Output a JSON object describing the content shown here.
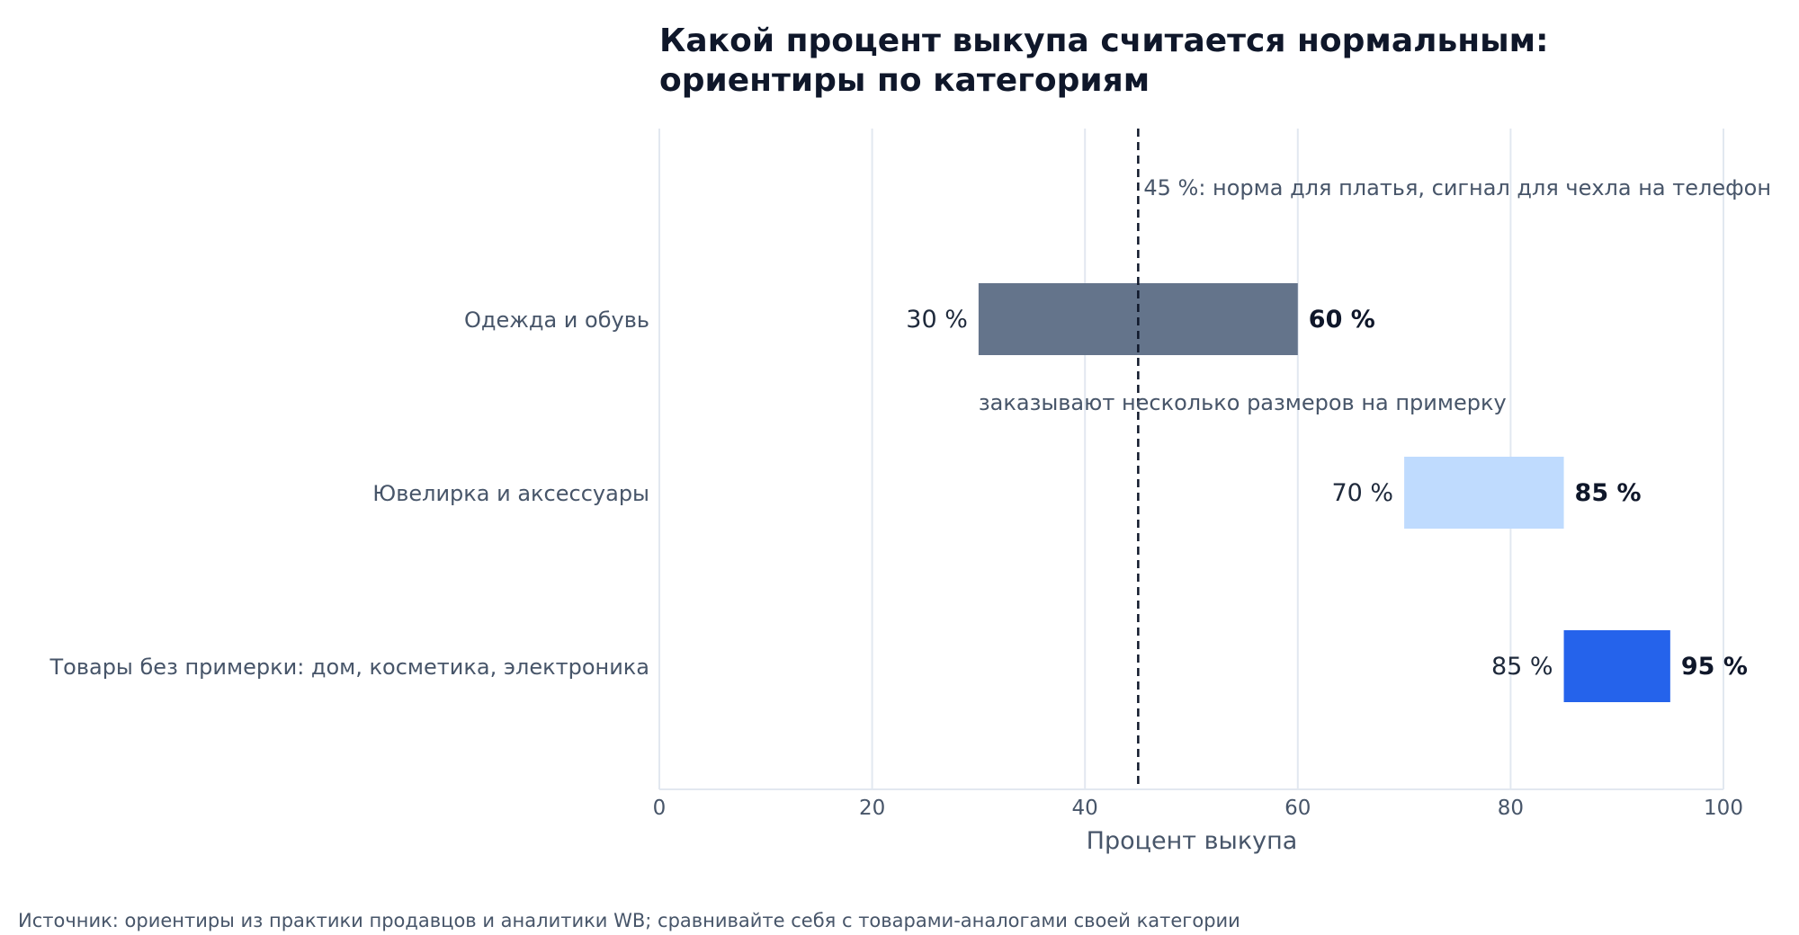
{
  "chart_data": {
    "type": "bar",
    "orientation": "horizontal",
    "subtype": "range",
    "title_lines": [
      "Какой процент выкупа считается нормальным:",
      "ориентиры по категориям"
    ],
    "xlabel": "Процент выкупа",
    "ylabel": "",
    "xlim": [
      0,
      100
    ],
    "xticks": [
      0,
      20,
      40,
      60,
      80,
      100
    ],
    "grid": "vertical",
    "legend": "none",
    "categories": [
      "Одежда и обувь",
      "Ювелирка и аксессуары",
      "Товары без примерки: дом, косметика, электроника"
    ],
    "ranges": [
      {
        "low": 30,
        "high": 60,
        "low_label": "30 %",
        "high_label": "60 %",
        "color": "#64748b"
      },
      {
        "low": 70,
        "high": 85,
        "low_label": "70 %",
        "high_label": "85 %",
        "color": "#bfdbfe"
      },
      {
        "low": 85,
        "high": 95,
        "low_label": "85 %",
        "high_label": "95 %",
        "color": "#2563eb"
      }
    ],
    "reference_line": {
      "value": 45,
      "style": "dashed",
      "color": "#0f172a",
      "label": "45 %: норма для платья, сигнал для чехла на телефон"
    },
    "annotations": [
      {
        "category_index": 0,
        "x": 30,
        "text": "заказывают несколько размеров на примерку"
      }
    ]
  },
  "footer": {
    "source": "Источник: ориентиры из практики продавцов и аналитики WB; сравнивайте себя с товарами-аналогами своей категории"
  }
}
